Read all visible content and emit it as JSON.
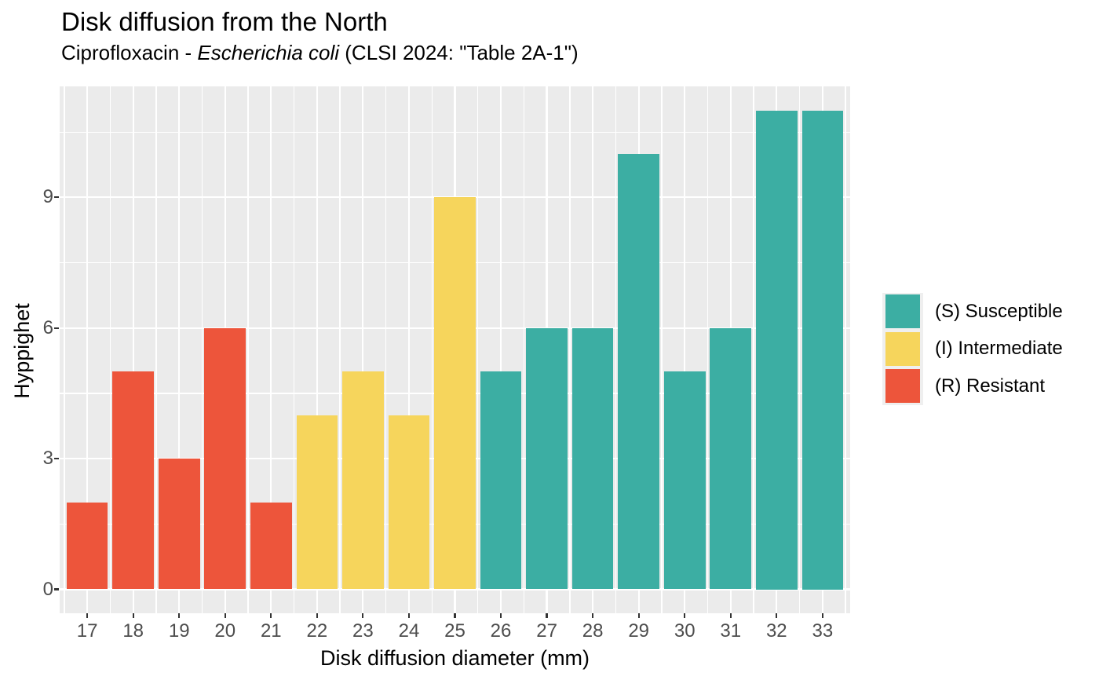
{
  "chart_data": {
    "type": "bar",
    "title": "Disk diffusion from the North",
    "subtitle": {
      "prefix": "Ciprofloxacin - ",
      "organism_italic": "Escherichia coli",
      "suffix": " (CLSI 2024: \"Table 2A-1\")"
    },
    "xlabel": "Disk diffusion diameter (mm)",
    "ylabel": "Hyppighet",
    "categories": [
      17,
      18,
      19,
      20,
      21,
      22,
      23,
      24,
      25,
      26,
      27,
      28,
      29,
      30,
      31,
      32,
      33
    ],
    "values": [
      2,
      5,
      3,
      6,
      2,
      4,
      5,
      4,
      9,
      5,
      6,
      6,
      10,
      5,
      6,
      11,
      11
    ],
    "groups": [
      "R",
      "R",
      "R",
      "R",
      "R",
      "I",
      "I",
      "I",
      "I",
      "S",
      "S",
      "S",
      "S",
      "S",
      "S",
      "S",
      "S"
    ],
    "group_colors": {
      "S": "#3CAEA3",
      "I": "#F6D55C",
      "R": "#ED553B"
    },
    "y_ticks": [
      0,
      3,
      6,
      9
    ],
    "y_minor_ticks": [
      1.5,
      4.5,
      7.5,
      10.5
    ],
    "ylim": [
      -0.55,
      11.55
    ],
    "bar_width_fraction": 0.9,
    "x_edge_padding_slots": 0.6,
    "grid": true,
    "legend_position": "right"
  },
  "legend": {
    "items": [
      {
        "sir": "S",
        "label": "(S) Susceptible",
        "color": "#3CAEA3"
      },
      {
        "sir": "I",
        "label": "(I) Intermediate",
        "color": "#F6D55C"
      },
      {
        "sir": "R",
        "label": "(R) Resistant",
        "color": "#ED553B"
      }
    ],
    "key_bg": "#EFEFEF"
  },
  "theme": {
    "panel_bg": "#EBEBEB",
    "grid_color": "#FFFFFF",
    "tick_label_color": "#4D4D4D",
    "tick_mark_color": "#333333"
  }
}
